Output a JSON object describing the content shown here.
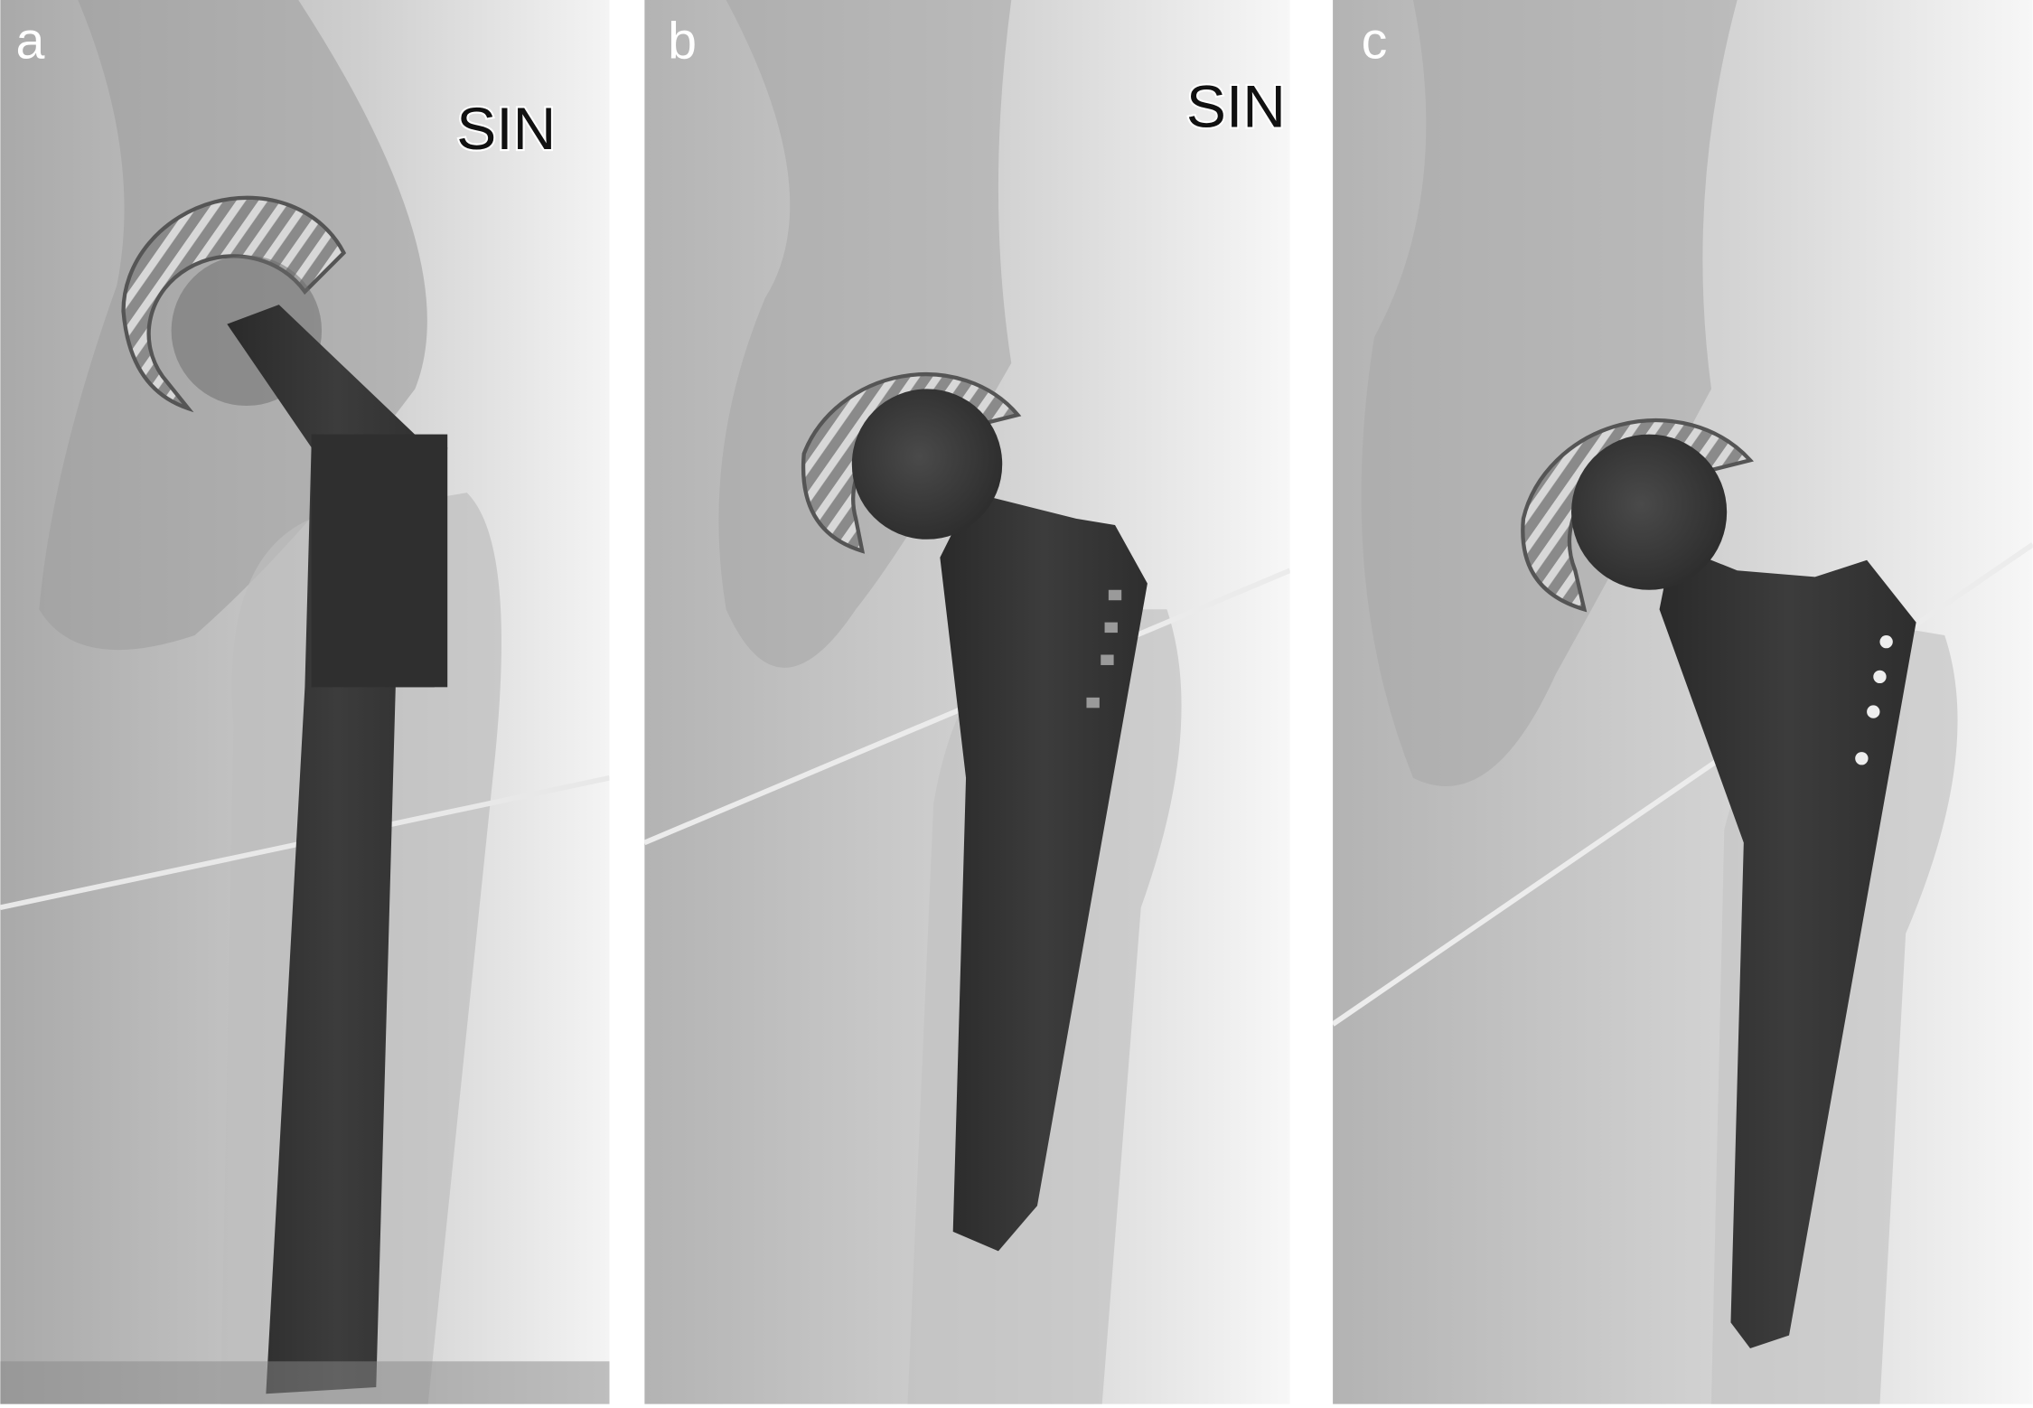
{
  "panels": [
    {
      "label": "a",
      "marker": "SIN"
    },
    {
      "label": "b",
      "marker": "SIN"
    },
    {
      "label": "c"
    }
  ]
}
